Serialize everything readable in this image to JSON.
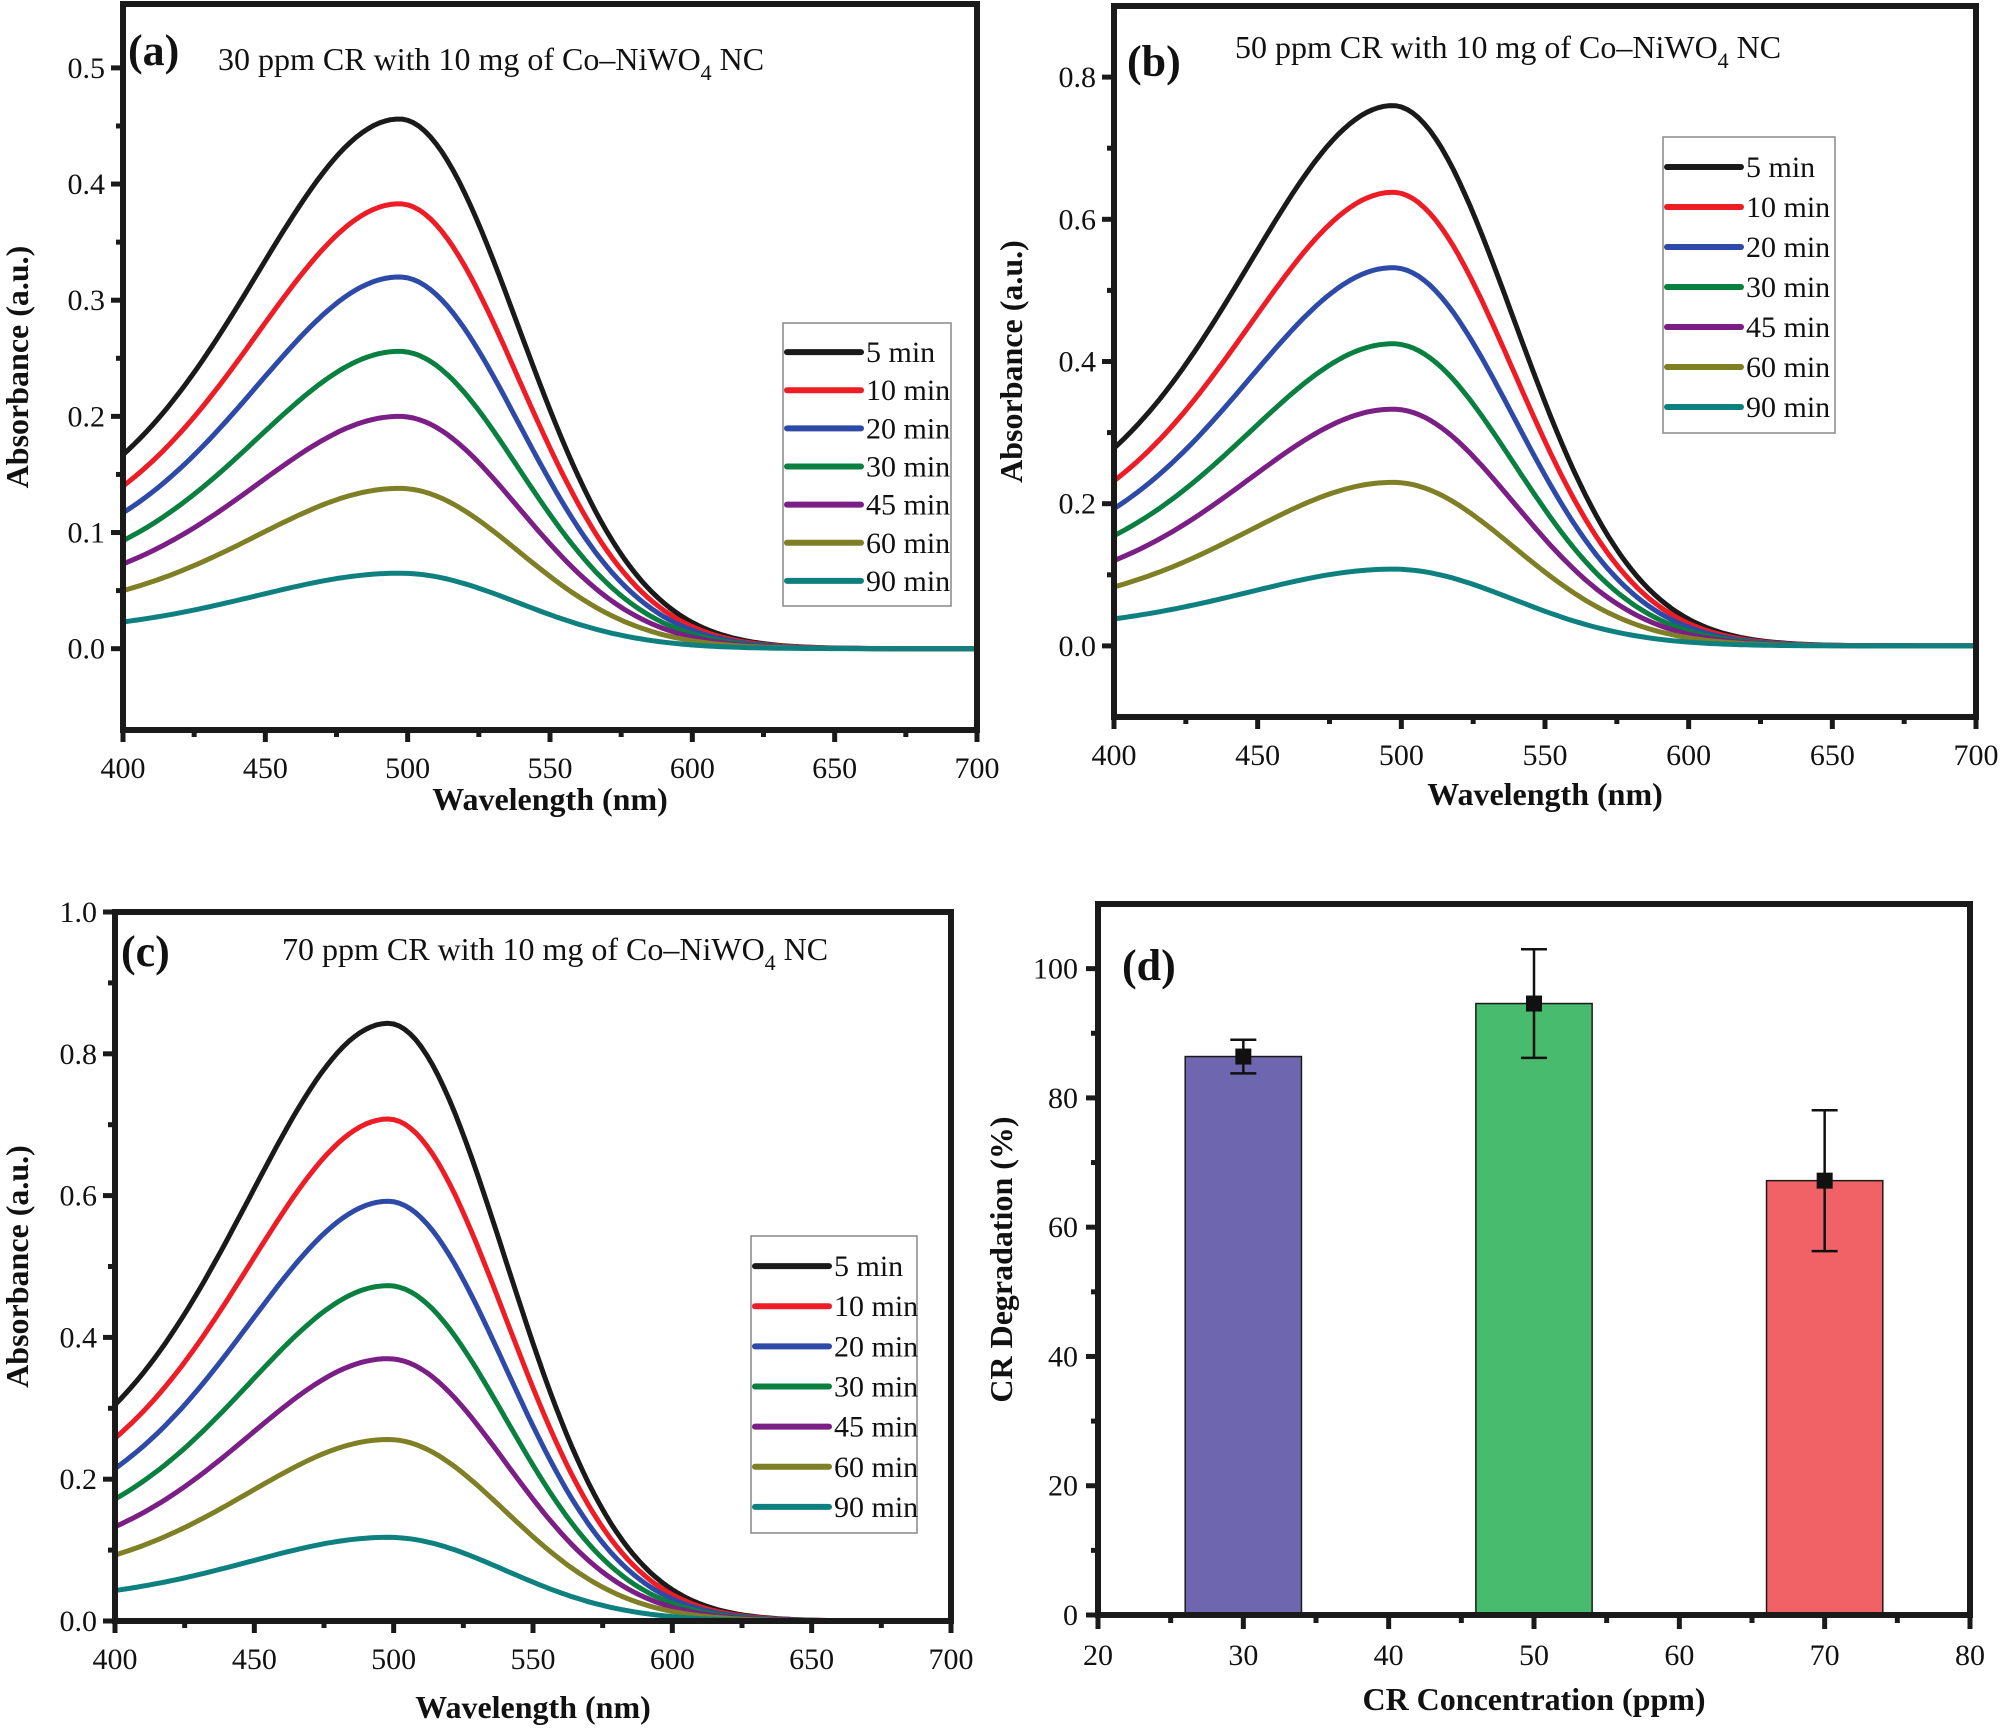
{
  "figure": {
    "description": "UV-Vis absorbance spectra of Congo Red (CR) degradation with Co-NiWO4 NC and degradation percentage bar chart"
  },
  "chart_data": [
    {
      "id": "a",
      "type": "line",
      "panel_label": "(a)",
      "title": "30 ppm CR with 10 mg of Co–NiWO4 NC",
      "title_parts": {
        "main": "30 ppm CR with 10 mg of Co–NiWO",
        "sub": "4",
        "tail": " NC"
      },
      "xlabel": "Wavelength (nm)",
      "ylabel": "Absorbance (a.u.)",
      "xlim": [
        400,
        700
      ],
      "ylim": [
        -0.07,
        0.555
      ],
      "xticks": [
        400,
        450,
        500,
        550,
        600,
        650,
        700
      ],
      "yticks": [
        0.0,
        0.1,
        0.2,
        0.3,
        0.4,
        0.5
      ],
      "ytick_labels": [
        "0.0",
        "0.1",
        "0.2",
        "0.3",
        "0.4",
        "0.5"
      ],
      "legend_position": "center-right",
      "peak_wavelength": 497,
      "series": [
        {
          "name": "5 min",
          "color": "#1a1a1a",
          "start": 0.167,
          "peak": 0.456
        },
        {
          "name": "10 min",
          "color": "#ee1c25",
          "start": 0.14,
          "peak": 0.383
        },
        {
          "name": "20 min",
          "color": "#2e4aa8",
          "start": 0.117,
          "peak": 0.32
        },
        {
          "name": "30 min",
          "color": "#0a8040",
          "start": 0.093,
          "peak": 0.256
        },
        {
          "name": "45 min",
          "color": "#7b1e85",
          "start": 0.073,
          "peak": 0.2
        },
        {
          "name": "60 min",
          "color": "#7f7f26",
          "start": 0.05,
          "peak": 0.138
        },
        {
          "name": "90 min",
          "color": "#0f8080",
          "start": 0.023,
          "peak": 0.065
        }
      ]
    },
    {
      "id": "b",
      "type": "line",
      "panel_label": "(b)",
      "title": "50 ppm CR with 10 mg of Co–NiWO4 NC",
      "title_parts": {
        "main": "50 ppm CR with 10 mg of Co–NiWO",
        "sub": "4",
        "tail": " NC"
      },
      "xlabel": "Wavelength (nm)",
      "ylabel": "Absorbance (a.u.)",
      "xlim": [
        400,
        700
      ],
      "ylim": [
        -0.1,
        0.9
      ],
      "xticks": [
        400,
        450,
        500,
        550,
        600,
        650,
        700
      ],
      "yticks": [
        0.0,
        0.2,
        0.4,
        0.6,
        0.8
      ],
      "ytick_labels": [
        "0.0",
        "0.2",
        "0.4",
        "0.6",
        "0.8"
      ],
      "legend_position": "top-right",
      "peak_wavelength": 497,
      "series": [
        {
          "name": "5 min",
          "color": "#1a1a1a",
          "start": 0.278,
          "peak": 0.76
        },
        {
          "name": "10 min",
          "color": "#ee1c25",
          "start": 0.232,
          "peak": 0.638
        },
        {
          "name": "20 min",
          "color": "#2e4aa8",
          "start": 0.193,
          "peak": 0.532
        },
        {
          "name": "30 min",
          "color": "#0a8040",
          "start": 0.155,
          "peak": 0.425
        },
        {
          "name": "45 min",
          "color": "#7b1e85",
          "start": 0.12,
          "peak": 0.333
        },
        {
          "name": "60 min",
          "color": "#7f7f26",
          "start": 0.083,
          "peak": 0.23
        },
        {
          "name": "90 min",
          "color": "#0f8080",
          "start": 0.038,
          "peak": 0.108
        }
      ]
    },
    {
      "id": "c",
      "type": "line",
      "panel_label": "(c)",
      "title": "70 ppm CR with 10 mg of Co–NiWO4 NC",
      "title_parts": {
        "main": "70 ppm CR with 10 mg of Co–NiWO",
        "sub": "4",
        "tail": " NC"
      },
      "xlabel": "Wavelength (nm)",
      "ylabel": "Absorbance (a.u.)",
      "xlim": [
        400,
        700
      ],
      "ylim": [
        0.0,
        1.0
      ],
      "xticks": [
        400,
        450,
        500,
        550,
        600,
        650,
        700
      ],
      "yticks": [
        0.0,
        0.2,
        0.4,
        0.6,
        0.8,
        1.0
      ],
      "ytick_labels": [
        "0.0",
        "0.2",
        "0.4",
        "0.6",
        "0.8",
        "1.0"
      ],
      "legend_position": "center-right",
      "peak_wavelength": 498,
      "series": [
        {
          "name": "5 min",
          "color": "#1a1a1a",
          "start": 0.305,
          "peak": 0.843
        },
        {
          "name": "10 min",
          "color": "#ee1c25",
          "start": 0.258,
          "peak": 0.708
        },
        {
          "name": "20 min",
          "color": "#2e4aa8",
          "start": 0.215,
          "peak": 0.592
        },
        {
          "name": "30 min",
          "color": "#0a8040",
          "start": 0.172,
          "peak": 0.473
        },
        {
          "name": "45 min",
          "color": "#7b1e85",
          "start": 0.133,
          "peak": 0.37
        },
        {
          "name": "60 min",
          "color": "#7f7f26",
          "start": 0.093,
          "peak": 0.256
        },
        {
          "name": "90 min",
          "color": "#0f8080",
          "start": 0.043,
          "peak": 0.118
        }
      ]
    },
    {
      "id": "d",
      "type": "bar",
      "panel_label": "(d)",
      "title": "",
      "xlabel": "CR Concentration (ppm)",
      "ylabel": "CR Degradation (%)",
      "xlim": [
        20,
        80
      ],
      "ylim": [
        0,
        110
      ],
      "xticks": [
        20,
        30,
        40,
        50,
        60,
        70,
        80
      ],
      "yticks": [
        0,
        20,
        40,
        60,
        80,
        100
      ],
      "bar_width_units": 8,
      "categories": [
        30,
        50,
        70
      ],
      "values": [
        86.4,
        94.6,
        67.2
      ],
      "errors": [
        2.6,
        8.4,
        10.9
      ],
      "colors": [
        "#6e66ae",
        "#48bb6f",
        "#f06266"
      ],
      "legend_position": "none"
    }
  ]
}
